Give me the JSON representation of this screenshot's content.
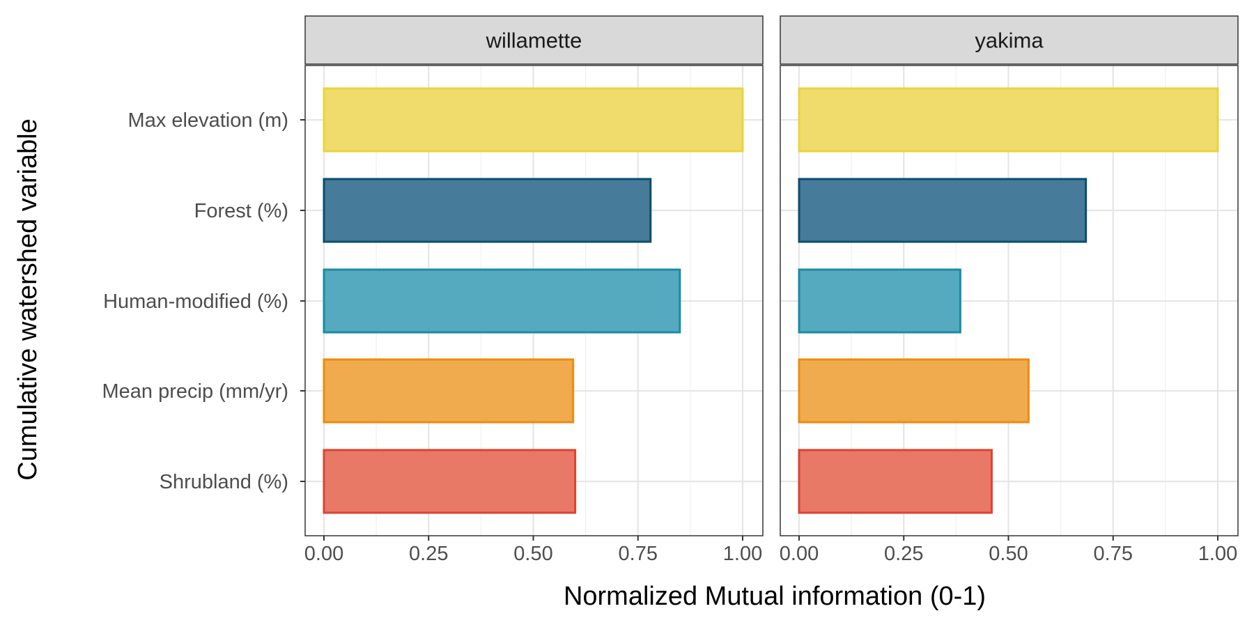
{
  "chart_data": {
    "type": "bar",
    "orientation": "horizontal",
    "xlabel": "Normalized Mutual information (0-1)",
    "ylabel": "Cumulative watershed variable",
    "xlim": [
      0,
      1
    ],
    "x_ticks": [
      "0.00",
      "0.25",
      "0.50",
      "0.75",
      "1.00"
    ],
    "x_tick_values": [
      0,
      0.25,
      0.5,
      0.75,
      1
    ],
    "grid": true,
    "legend": "none",
    "categories": [
      "Max elevation (m)",
      "Forest (%)",
      "Human-modified (%)",
      "Mean precip (mm/yr)",
      "Shrubland (%)"
    ],
    "category_colors": [
      {
        "fill": "#F0DC6C",
        "stroke": "#E9D43E"
      },
      {
        "fill": "#467C99",
        "stroke": "#0A4D6E"
      },
      {
        "fill": "#55AABF",
        "stroke": "#1B8BA3"
      },
      {
        "fill": "#F0AB4E",
        "stroke": "#EE8B10"
      },
      {
        "fill": "#E87966",
        "stroke": "#DC4431"
      }
    ],
    "panels": [
      {
        "name": "willamette",
        "values": [
          1.0,
          0.78,
          0.85,
          0.595,
          0.6
        ]
      },
      {
        "name": "yakima",
        "values": [
          1.0,
          0.685,
          0.385,
          0.548,
          0.46
        ]
      }
    ]
  }
}
